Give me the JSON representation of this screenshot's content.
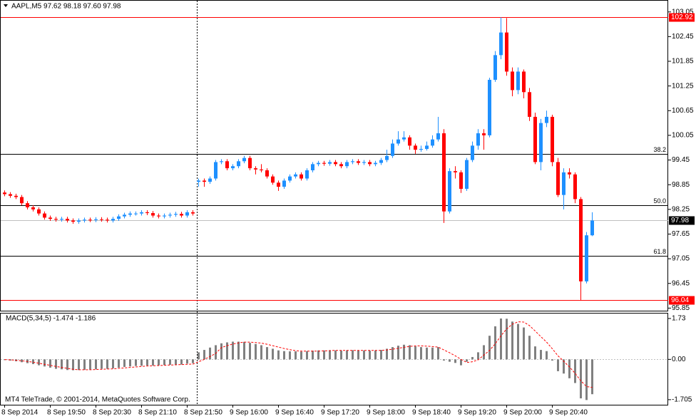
{
  "chart_data": {
    "type": "candlestick",
    "title": "AAPL,M5  97.62 98.18 97.60 97.98",
    "footer": "MT4 TeleTrade, © 2001-2014, MetaQuotes Software Corp.",
    "up_color": "#1e90ff",
    "down_color": "#ff0000",
    "categories": [
      "8 Sep 2014",
      null,
      null,
      null,
      null,
      null,
      null,
      null,
      "8 Sep 19:50",
      null,
      null,
      null,
      null,
      null,
      null,
      null,
      "8 Sep 20:30",
      null,
      null,
      null,
      null,
      null,
      null,
      null,
      "8 Sep 21:10",
      null,
      null,
      null,
      null,
      null,
      null,
      null,
      "8 Sep 21:50",
      null,
      null,
      null,
      null,
      null,
      null,
      null,
      "9 Sep 16:00",
      null,
      null,
      null,
      null,
      null,
      null,
      null,
      "9 Sep 16:40",
      null,
      null,
      null,
      null,
      null,
      null,
      null,
      "9 Sep 17:20",
      null,
      null,
      null,
      null,
      null,
      null,
      null,
      "9 Sep 18:00",
      null,
      null,
      null,
      null,
      null,
      null,
      null,
      "9 Sep 18:40",
      null,
      null,
      null,
      null,
      null,
      null,
      null,
      "9 Sep 19:20",
      null,
      null,
      null,
      null,
      null,
      null,
      null,
      "9 Sep 20:00",
      null,
      null,
      null,
      null,
      null,
      null,
      null,
      "9 Sep 20:40",
      null,
      null,
      null,
      null,
      null,
      null,
      null
    ],
    "open": [
      98.66,
      98.62,
      98.58,
      98.55,
      98.4,
      98.3,
      98.25,
      98.15,
      98.05,
      98.02,
      98.0,
      98.02,
      97.98,
      97.95,
      97.98,
      98.0,
      97.99,
      98.01,
      98.0,
      97.98,
      98.02,
      98.08,
      98.12,
      98.15,
      98.15,
      98.18,
      98.16,
      98.1,
      98.08,
      98.1,
      98.12,
      98.14,
      98.1,
      98.18,
      98.92,
      98.95,
      98.92,
      99.0,
      99.4,
      99.42,
      99.25,
      99.3,
      99.42,
      99.5,
      99.25,
      99.22,
      99.2,
      99.05,
      98.9,
      98.8,
      98.95,
      99.05,
      99.1,
      99.0,
      99.2,
      99.35,
      99.38,
      99.36,
      99.4,
      99.35,
      99.3,
      99.4,
      99.42,
      99.38,
      99.4,
      99.35,
      99.38,
      99.45,
      99.55,
      99.85,
      99.95,
      100.0,
      99.8,
      99.7,
      99.72,
      99.8,
      99.95,
      100.1,
      98.2,
      99.18,
      99.15,
      98.75,
      99.45,
      99.8,
      100.1,
      100.05,
      101.4,
      102.0,
      102.55,
      101.6,
      101.15,
      101.6,
      101.1,
      100.5,
      99.4,
      100.35,
      100.5,
      99.4,
      98.6,
      99.15,
      99.1,
      98.5,
      96.5,
      97.62
    ],
    "high": [
      98.71,
      98.67,
      98.63,
      98.6,
      98.45,
      98.35,
      98.3,
      98.2,
      98.1,
      98.07,
      98.07,
      98.07,
      98.03,
      98.03,
      98.05,
      98.05,
      98.06,
      98.06,
      98.05,
      98.07,
      98.13,
      98.17,
      98.2,
      98.2,
      98.23,
      98.23,
      98.21,
      98.15,
      98.15,
      98.17,
      98.19,
      98.19,
      98.23,
      98.23,
      99.0,
      99.0,
      99.05,
      99.45,
      99.47,
      99.47,
      99.35,
      99.47,
      99.55,
      99.55,
      99.3,
      99.35,
      99.25,
      99.1,
      98.95,
      99.0,
      99.1,
      99.15,
      99.15,
      99.25,
      99.4,
      99.43,
      99.43,
      99.45,
      99.45,
      99.4,
      99.45,
      99.47,
      99.47,
      99.45,
      99.45,
      99.43,
      99.5,
      99.7,
      99.95,
      100.15,
      100.15,
      100.05,
      99.85,
      99.8,
      99.9,
      100.05,
      100.5,
      100.2,
      99.25,
      99.3,
      99.2,
      99.5,
      99.9,
      100.2,
      100.2,
      101.45,
      102.1,
      102.92,
      102.9,
      101.7,
      101.7,
      101.65,
      101.2,
      100.6,
      100.45,
      100.65,
      100.55,
      99.5,
      99.25,
      99.25,
      99.15,
      98.55,
      97.7,
      98.18
    ],
    "low": [
      98.57,
      98.53,
      98.5,
      98.35,
      98.25,
      98.2,
      98.1,
      98.0,
      97.97,
      97.95,
      97.95,
      97.93,
      97.9,
      97.9,
      97.93,
      97.94,
      97.94,
      97.95,
      97.93,
      97.93,
      97.97,
      98.03,
      98.07,
      98.1,
      98.1,
      98.11,
      98.05,
      98.03,
      98.03,
      98.05,
      98.07,
      98.05,
      98.05,
      98.1,
      98.8,
      98.8,
      98.87,
      98.95,
      99.35,
      99.2,
      99.2,
      99.25,
      99.37,
      99.2,
      99.1,
      99.15,
      99.0,
      98.85,
      98.7,
      98.75,
      98.9,
      99.0,
      98.95,
      98.95,
      99.15,
      99.3,
      99.31,
      99.31,
      99.3,
      99.25,
      99.25,
      99.35,
      99.33,
      99.33,
      99.3,
      99.3,
      99.33,
      99.4,
      99.5,
      99.8,
      99.9,
      99.7,
      99.6,
      99.65,
      99.68,
      99.75,
      99.9,
      97.92,
      98.15,
      99.0,
      98.65,
      98.7,
      99.4,
      99.7,
      99.7,
      100.0,
      101.35,
      101.9,
      101.5,
      101.0,
      101.05,
      100.95,
      100.4,
      99.35,
      99.2,
      100.25,
      99.3,
      98.55,
      98.25,
      99.0,
      98.4,
      96.04,
      96.45,
      97.6
    ],
    "close": [
      98.62,
      98.58,
      98.55,
      98.4,
      98.3,
      98.25,
      98.15,
      98.05,
      98.02,
      98.0,
      98.02,
      97.98,
      97.95,
      97.98,
      98.0,
      97.99,
      98.01,
      98.0,
      97.98,
      98.02,
      98.08,
      98.12,
      98.15,
      98.15,
      98.18,
      98.16,
      98.1,
      98.08,
      98.1,
      98.12,
      98.14,
      98.1,
      98.18,
      98.15,
      98.95,
      98.92,
      99.0,
      99.4,
      99.42,
      99.25,
      99.3,
      99.42,
      99.5,
      99.25,
      99.22,
      99.2,
      99.05,
      98.9,
      98.8,
      98.95,
      99.05,
      99.1,
      99.0,
      99.2,
      99.35,
      99.38,
      99.36,
      99.4,
      99.35,
      99.3,
      99.4,
      99.42,
      99.38,
      99.4,
      99.35,
      99.38,
      99.45,
      99.55,
      99.85,
      99.95,
      100.0,
      99.8,
      99.7,
      99.72,
      99.8,
      99.95,
      100.1,
      98.2,
      99.18,
      99.15,
      98.75,
      99.45,
      99.8,
      100.1,
      100.05,
      101.4,
      102.0,
      102.55,
      101.6,
      101.15,
      101.6,
      101.1,
      100.5,
      99.4,
      100.35,
      100.5,
      99.4,
      98.6,
      99.15,
      99.1,
      98.5,
      96.5,
      97.62,
      97.98
    ],
    "ylim": [
      95.77,
      103.34
    ],
    "yticks": [
      103.05,
      102.45,
      101.85,
      101.25,
      100.65,
      100.05,
      99.45,
      98.85,
      98.25,
      97.65,
      97.05,
      96.45,
      95.85
    ],
    "price_lines": [
      {
        "value": 102.92,
        "color": "#ff0000"
      },
      {
        "value": 96.04,
        "color": "#ff0000"
      }
    ],
    "fib_levels": [
      {
        "label": "38.2",
        "price": 99.6
      },
      {
        "label": "50.0",
        "price": 98.35
      },
      {
        "label": "61.8",
        "price": 97.12
      }
    ],
    "macd": {
      "label": "MACD(5,34,5) -1.474 -1.186",
      "color": "#808080",
      "signal_color": "#ff0000",
      "ylim": [
        -1.92,
        1.94
      ],
      "yticks": [
        1.73,
        {
          "value": 0,
          "label": "0.00"
        },
        -1.705
      ],
      "histogram": [
        -0.02,
        -0.05,
        -0.08,
        -0.12,
        -0.16,
        -0.2,
        -0.25,
        -0.3,
        -0.35,
        -0.4,
        -0.42,
        -0.45,
        -0.46,
        -0.45,
        -0.44,
        -0.43,
        -0.42,
        -0.4,
        -0.4,
        -0.38,
        -0.35,
        -0.32,
        -0.3,
        -0.28,
        -0.27,
        -0.26,
        -0.26,
        -0.25,
        -0.24,
        -0.23,
        -0.22,
        -0.22,
        -0.18,
        -0.16,
        0.3,
        0.4,
        0.5,
        0.6,
        0.68,
        0.72,
        0.75,
        0.75,
        0.74,
        0.7,
        0.65,
        0.6,
        0.52,
        0.45,
        0.38,
        0.35,
        0.34,
        0.34,
        0.33,
        0.35,
        0.37,
        0.38,
        0.38,
        0.39,
        0.38,
        0.37,
        0.38,
        0.39,
        0.38,
        0.38,
        0.37,
        0.38,
        0.4,
        0.45,
        0.52,
        0.58,
        0.62,
        0.6,
        0.55,
        0.52,
        0.5,
        0.5,
        0.52,
        -0.05,
        -0.1,
        -0.15,
        -0.25,
        -0.1,
        0.1,
        0.3,
        0.6,
        1.0,
        1.4,
        1.73,
        1.72,
        1.6,
        1.5,
        1.35,
        1.0,
        0.55,
        0.4,
        0.35,
        -0.05,
        -0.5,
        -0.6,
        -0.8,
        -1.0,
        -1.65,
        -1.72,
        -1.474
      ],
      "signal": [
        -0.01,
        -0.02,
        -0.04,
        -0.06,
        -0.09,
        -0.12,
        -0.16,
        -0.21,
        -0.25,
        -0.3,
        -0.34,
        -0.38,
        -0.42,
        -0.44,
        -0.44,
        -0.44,
        -0.43,
        -0.42,
        -0.41,
        -0.4,
        -0.38,
        -0.36,
        -0.34,
        -0.32,
        -0.3,
        -0.28,
        -0.27,
        -0.26,
        -0.25,
        -0.24,
        -0.23,
        -0.22,
        -0.21,
        -0.2,
        -0.1,
        0.0,
        0.12,
        0.25,
        0.5,
        0.58,
        0.65,
        0.7,
        0.73,
        0.73,
        0.71,
        0.69,
        0.64,
        0.58,
        0.52,
        0.46,
        0.41,
        0.37,
        0.35,
        0.35,
        0.35,
        0.35,
        0.36,
        0.37,
        0.38,
        0.38,
        0.38,
        0.38,
        0.38,
        0.38,
        0.38,
        0.38,
        0.38,
        0.4,
        0.43,
        0.47,
        0.51,
        0.55,
        0.57,
        0.57,
        0.56,
        0.54,
        0.52,
        0.4,
        0.28,
        0.15,
        0.0,
        -0.13,
        -0.1,
        -0.02,
        0.18,
        0.38,
        0.66,
        1.0,
        1.29,
        1.49,
        1.59,
        1.58,
        1.43,
        1.2,
        0.96,
        0.73,
        0.45,
        0.15,
        -0.08,
        -0.32,
        -0.59,
        -0.91,
        -1.15,
        -1.186
      ]
    }
  }
}
